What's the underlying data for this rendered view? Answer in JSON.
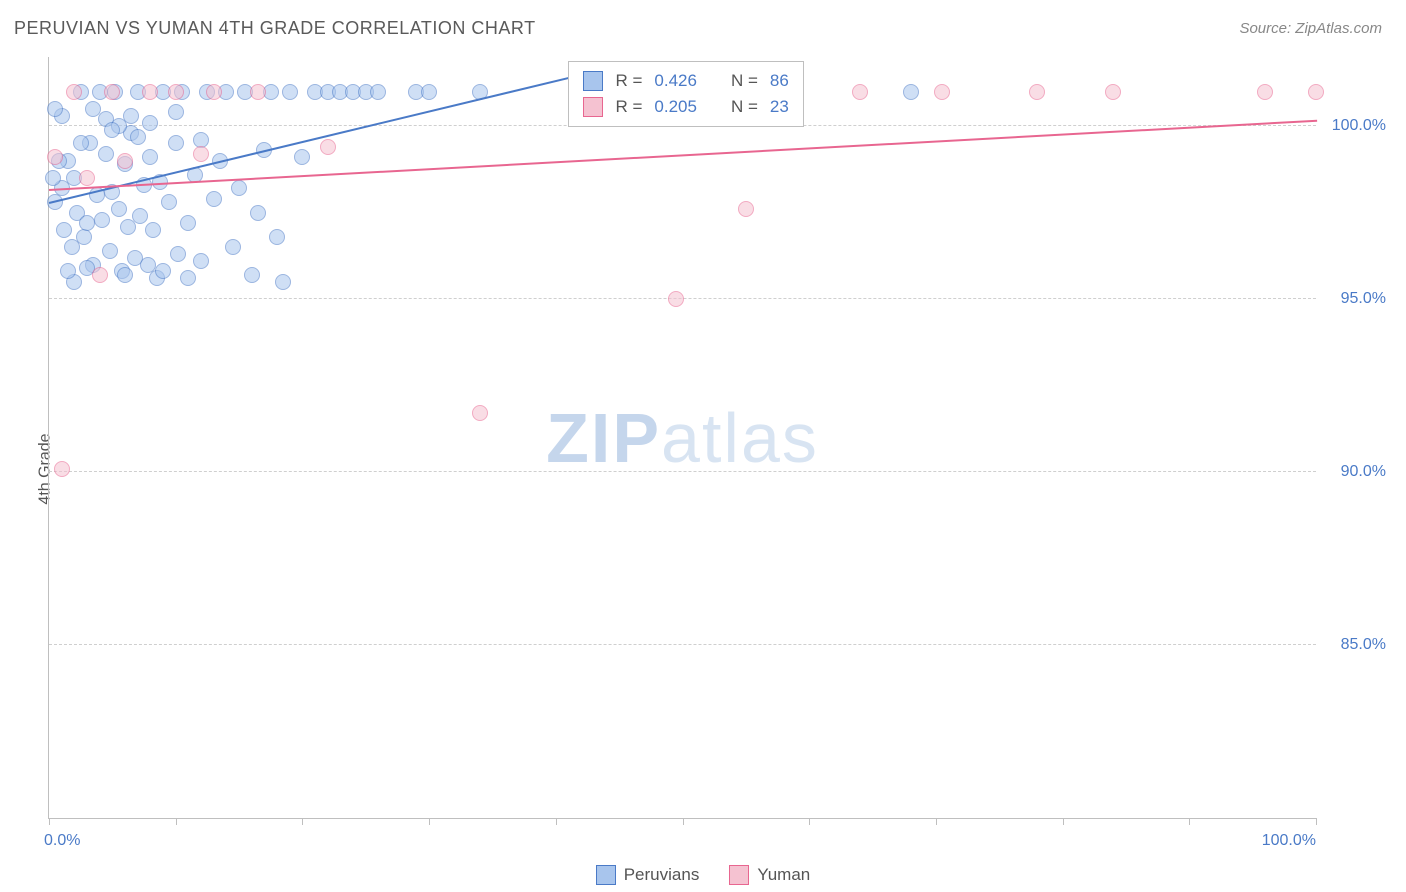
{
  "title": "PERUVIAN VS YUMAN 4TH GRADE CORRELATION CHART",
  "source_label": "Source: ZipAtlas.com",
  "y_axis_label": "4th Grade",
  "watermark_bold": "ZIP",
  "watermark_light": "atlas",
  "chart": {
    "type": "scatter",
    "xlim": [
      0,
      100
    ],
    "ylim": [
      80,
      102
    ],
    "background_color": "#ffffff",
    "grid_color": "#cfcfcf",
    "axis_color": "#bfbfbf",
    "tick_label_color": "#4a7ac7",
    "y_gridlines": [
      85,
      90,
      95,
      100
    ],
    "y_tick_labels": [
      "85.0%",
      "90.0%",
      "95.0%",
      "100.0%"
    ],
    "x_ticks": [
      0,
      10,
      20,
      30,
      40,
      50,
      60,
      70,
      80,
      90,
      100
    ],
    "x_tick_labels": {
      "0": "0.0%",
      "100": "100.0%"
    },
    "marker_radius": 8,
    "marker_opacity": 0.55,
    "series": [
      {
        "name": "Peruvians",
        "color_fill": "#a8c5ed",
        "color_stroke": "#4a7ac7",
        "R": "0.426",
        "N": "86",
        "trend": {
          "x1": 0,
          "y1": 97.8,
          "x2": 42,
          "y2": 101.5,
          "color": "#4a7ac7"
        },
        "points": [
          [
            0.5,
            97.8
          ],
          [
            1.0,
            98.2
          ],
          [
            1.2,
            97.0
          ],
          [
            1.5,
            99.0
          ],
          [
            1.8,
            96.5
          ],
          [
            2.0,
            98.5
          ],
          [
            2.2,
            97.5
          ],
          [
            2.5,
            101.0
          ],
          [
            2.8,
            96.8
          ],
          [
            3.0,
            97.2
          ],
          [
            3.2,
            99.5
          ],
          [
            3.5,
            96.0
          ],
          [
            3.8,
            98.0
          ],
          [
            4.0,
            101.0
          ],
          [
            4.2,
            97.3
          ],
          [
            4.5,
            99.2
          ],
          [
            4.8,
            96.4
          ],
          [
            5.0,
            98.1
          ],
          [
            5.2,
            101.0
          ],
          [
            5.5,
            97.6
          ],
          [
            5.8,
            95.8
          ],
          [
            6.0,
            98.9
          ],
          [
            6.2,
            97.1
          ],
          [
            6.5,
            99.8
          ],
          [
            6.8,
            96.2
          ],
          [
            7.0,
            101.0
          ],
          [
            7.2,
            97.4
          ],
          [
            7.5,
            98.3
          ],
          [
            7.8,
            96.0
          ],
          [
            8.0,
            99.1
          ],
          [
            8.2,
            97.0
          ],
          [
            8.5,
            95.6
          ],
          [
            8.8,
            98.4
          ],
          [
            9.0,
            101.0
          ],
          [
            9.5,
            97.8
          ],
          [
            10.0,
            99.5
          ],
          [
            10.2,
            96.3
          ],
          [
            10.5,
            101.0
          ],
          [
            11.0,
            97.2
          ],
          [
            11.5,
            98.6
          ],
          [
            12.0,
            96.1
          ],
          [
            12.5,
            101.0
          ],
          [
            13.0,
            97.9
          ],
          [
            13.5,
            99.0
          ],
          [
            14.0,
            101.0
          ],
          [
            14.5,
            96.5
          ],
          [
            15.0,
            98.2
          ],
          [
            15.5,
            101.0
          ],
          [
            16.0,
            95.7
          ],
          [
            16.5,
            97.5
          ],
          [
            17.0,
            99.3
          ],
          [
            17.5,
            101.0
          ],
          [
            18.0,
            96.8
          ],
          [
            18.5,
            95.5
          ],
          [
            19.0,
            101.0
          ],
          [
            20.0,
            99.1
          ],
          [
            21.0,
            101.0
          ],
          [
            22.0,
            101.0
          ],
          [
            23.0,
            101.0
          ],
          [
            24.0,
            101.0
          ],
          [
            25.0,
            101.0
          ],
          [
            26.0,
            101.0
          ],
          [
            29.0,
            101.0
          ],
          [
            30.0,
            101.0
          ],
          [
            34.0,
            101.0
          ],
          [
            68.0,
            101.0
          ],
          [
            4.5,
            100.2
          ],
          [
            5.5,
            100.0
          ],
          [
            6.5,
            100.3
          ],
          [
            8.0,
            100.1
          ],
          [
            3.0,
            95.9
          ],
          [
            5.0,
            99.9
          ],
          [
            6.0,
            95.7
          ],
          [
            7.0,
            99.7
          ],
          [
            9.0,
            95.8
          ],
          [
            10.0,
            100.4
          ],
          [
            11.0,
            95.6
          ],
          [
            12.0,
            99.6
          ],
          [
            2.0,
            95.5
          ],
          [
            3.5,
            100.5
          ],
          [
            1.0,
            100.3
          ],
          [
            0.8,
            99.0
          ],
          [
            1.5,
            95.8
          ],
          [
            0.5,
            100.5
          ],
          [
            0.3,
            98.5
          ],
          [
            2.5,
            99.5
          ]
        ]
      },
      {
        "name": "Yuman",
        "color_fill": "#f5c2d1",
        "color_stroke": "#e86690",
        "R": "0.205",
        "N": "23",
        "trend": {
          "x1": 0,
          "y1": 98.2,
          "x2": 100,
          "y2": 100.2,
          "color": "#e86690"
        },
        "points": [
          [
            0.5,
            99.1
          ],
          [
            1.0,
            90.1
          ],
          [
            2.0,
            101.0
          ],
          [
            3.0,
            98.5
          ],
          [
            4.0,
            95.7
          ],
          [
            5.0,
            101.0
          ],
          [
            6.0,
            99.0
          ],
          [
            8.0,
            101.0
          ],
          [
            10.0,
            101.0
          ],
          [
            12.0,
            99.2
          ],
          [
            13.0,
            101.0
          ],
          [
            16.5,
            101.0
          ],
          [
            22.0,
            99.4
          ],
          [
            34.0,
            91.7
          ],
          [
            47.0,
            101.0
          ],
          [
            49.5,
            95.0
          ],
          [
            55.0,
            97.6
          ],
          [
            64.0,
            101.0
          ],
          [
            70.5,
            101.0
          ],
          [
            78.0,
            101.0
          ],
          [
            84.0,
            101.0
          ],
          [
            96.0,
            101.0
          ],
          [
            100.0,
            101.0
          ]
        ]
      }
    ],
    "stats_box": {
      "left_pct": 41,
      "top_pct": 0.5,
      "r_label": "R =",
      "n_label": "N ="
    },
    "legend": {
      "series1_label": "Peruvians",
      "series2_label": "Yuman"
    }
  }
}
